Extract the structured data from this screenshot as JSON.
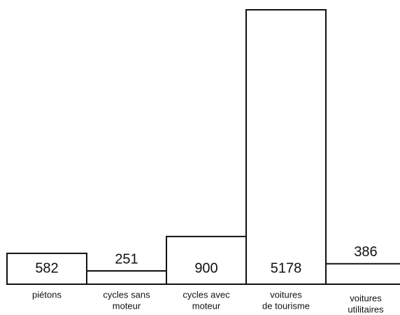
{
  "chart_data": {
    "type": "bar",
    "categories": [
      [
        "piétons"
      ],
      [
        "cycles sans",
        "moteur"
      ],
      [
        "cycles avec",
        "moteur"
      ],
      [
        "voitures",
        "de tourisme"
      ],
      [
        "voitures",
        "utilitaires"
      ]
    ],
    "values": [
      582,
      251,
      900,
      5178,
      386
    ],
    "color": "#ffffff"
  }
}
